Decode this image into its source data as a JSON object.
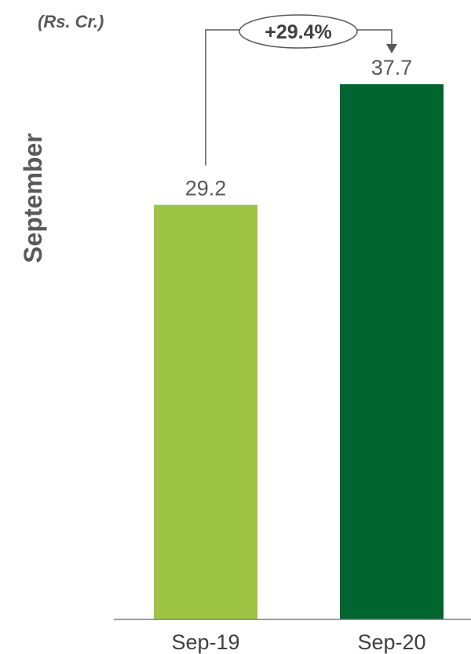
{
  "chart_data": {
    "type": "bar",
    "unit_label": "(Rs. Cr.)",
    "side_title": "September",
    "categories": [
      "Sep-19",
      "Sep-20"
    ],
    "values": [
      29.2,
      37.7
    ],
    "value_labels": [
      "29.2",
      "37.7"
    ],
    "bar_colors": [
      "#9DC443",
      "#00652E"
    ],
    "growth_label": "+29.4%",
    "ylim": [
      0,
      40
    ],
    "grid": false,
    "legend": "none"
  }
}
